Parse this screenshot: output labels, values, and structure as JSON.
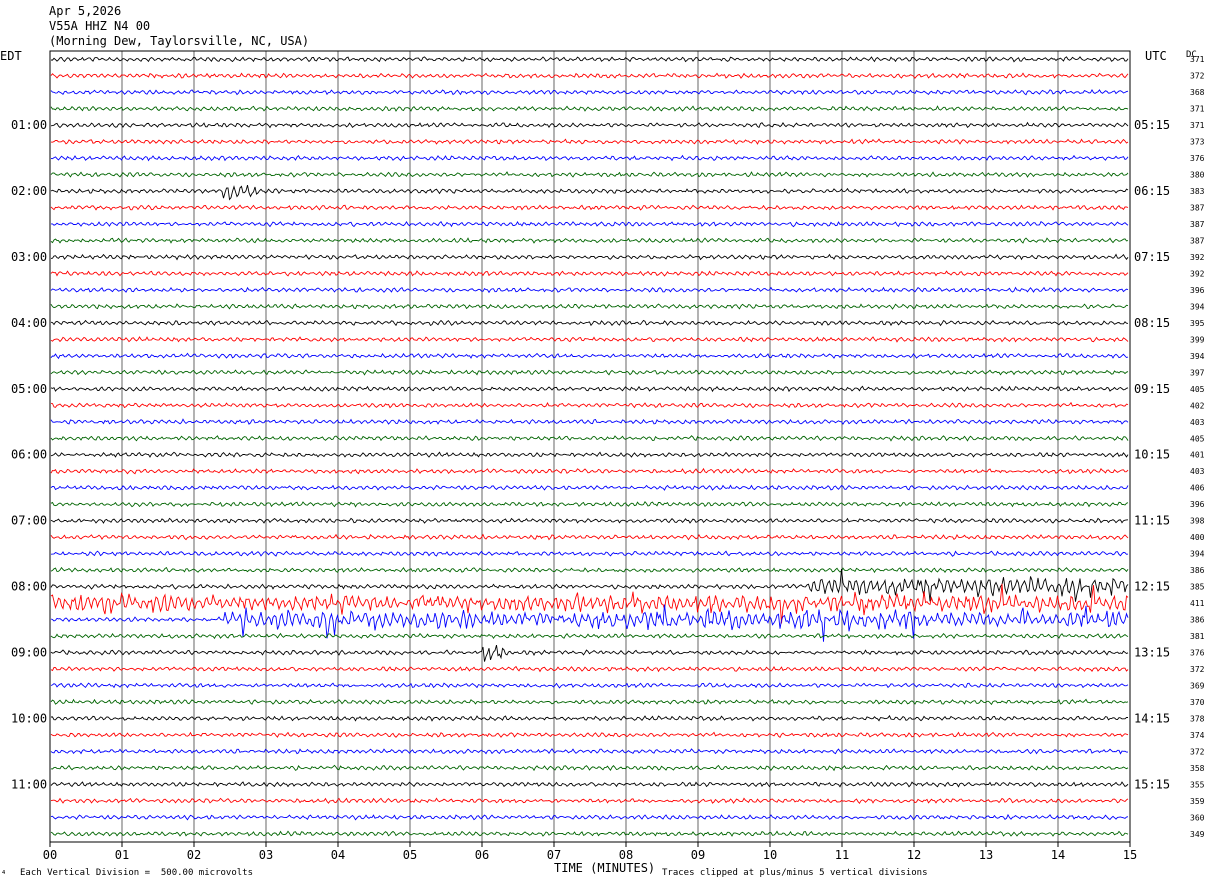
{
  "header": {
    "date": "Apr 5,2026",
    "station": "V55A HHZ N4 00",
    "location": "(Morning Dew, Taylorsville, NC, USA)"
  },
  "axes": {
    "left_tz": "EDT",
    "right_tz": "UTC",
    "dc_label": "DC",
    "xlabel": "TIME (MINUTES)"
  },
  "footer": {
    "scale_note": "Each Vertical Division =  500.00 microvolts",
    "clip_note": "Traces clipped at plus/minus 5 vertical divisions",
    "corner_mark": "⁴"
  },
  "chart_data": {
    "type": "line",
    "title": "V55A HHZ N4 00",
    "xlabel": "TIME (MINUTES)",
    "x_ticks": [
      "00",
      "01",
      "02",
      "03",
      "04",
      "05",
      "06",
      "07",
      "08",
      "09",
      "10",
      "11",
      "12",
      "13",
      "14",
      "15"
    ],
    "xlim": [
      0,
      15
    ],
    "trace_count": 48,
    "trace_minutes": 15,
    "trace_colors": [
      "#000000",
      "#ff0000",
      "#0000ff",
      "#006400"
    ],
    "left_hour_labels": [
      "01:00",
      "02:00",
      "03:00",
      "04:00",
      "05:00",
      "06:00",
      "07:00",
      "08:00",
      "09:00",
      "10:00",
      "11:00"
    ],
    "right_hour_labels": [
      "05:15",
      "06:15",
      "07:15",
      "08:15",
      "09:15",
      "10:15",
      "11:15",
      "12:15",
      "13:15",
      "14:15",
      "15:15"
    ],
    "dc_offsets": [
      371,
      372,
      368,
      371,
      371,
      373,
      376,
      380,
      383,
      387,
      387,
      387,
      392,
      392,
      396,
      394,
      395,
      399,
      394,
      397,
      405,
      402,
      403,
      405,
      401,
      403,
      406,
      396,
      398,
      400,
      394,
      386,
      385,
      411,
      386,
      381,
      376,
      372,
      369,
      370,
      378,
      374,
      372,
      358,
      355,
      359,
      360,
      349
    ],
    "events": [
      {
        "trace": 8,
        "minute_start": 2.4,
        "minute_end": 2.9,
        "amplitude": "moderate"
      },
      {
        "trace": 32,
        "minute_start": 10.5,
        "minute_end": 15,
        "amplitude": "high"
      },
      {
        "trace": 33,
        "minute_start": 0,
        "minute_end": 15,
        "amplitude": "high"
      },
      {
        "trace": 34,
        "minute_start": 2.4,
        "minute_end": 15,
        "amplitude": "high"
      },
      {
        "trace": 36,
        "minute_start": 6.0,
        "minute_end": 6.4,
        "amplitude": "high"
      }
    ],
    "clip_divisions": 5,
    "division_microvolts": 500
  }
}
